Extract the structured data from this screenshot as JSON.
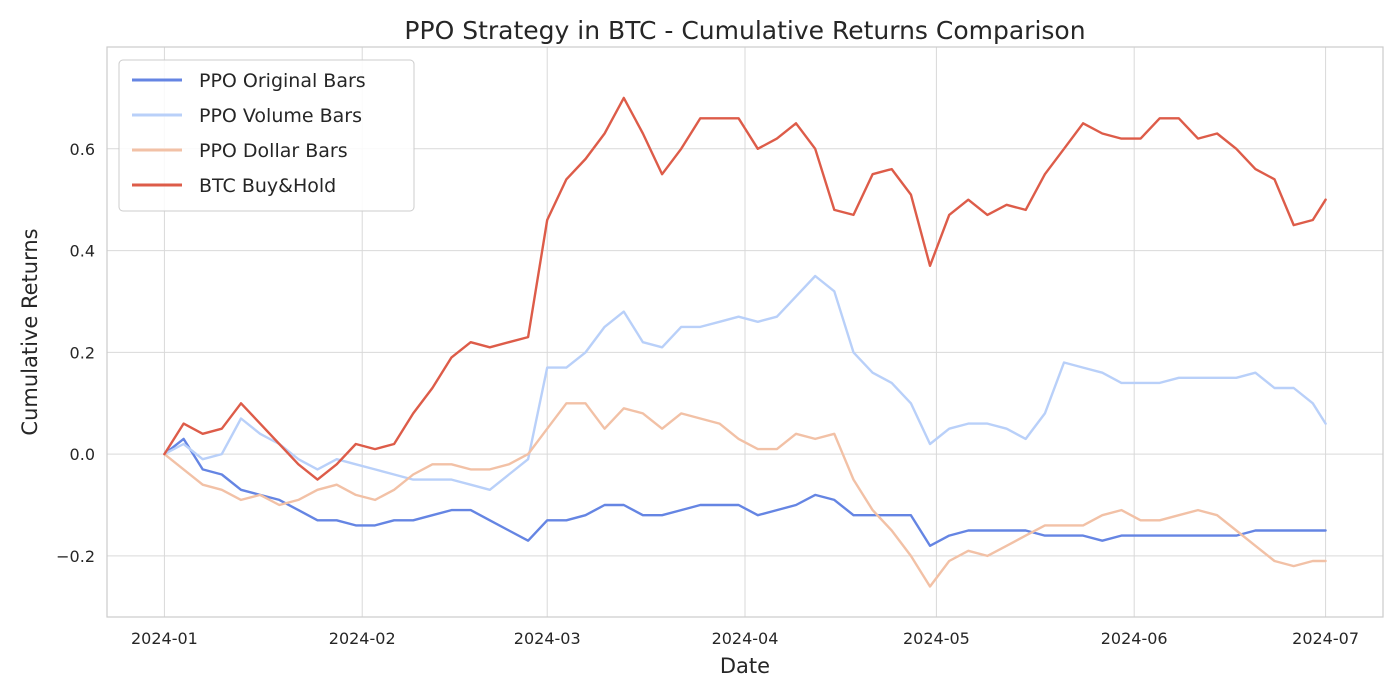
{
  "chart_data": {
    "type": "line",
    "title": "PPO Strategy in BTC - Cumulative Returns Comparison",
    "xlabel": "Date",
    "ylabel": "Cumulative Returns",
    "x_ticks": [
      "2024-01",
      "2024-02",
      "2024-03",
      "2024-04",
      "2024-05",
      "2024-06",
      "2024-07"
    ],
    "y_ticks": [
      -0.2,
      0.0,
      0.2,
      0.4,
      0.6
    ],
    "y_tick_labels": [
      "−0.2",
      "0.0",
      "0.2",
      "0.4",
      "0.6"
    ],
    "xlim": [
      "2023-12-23",
      "2024-07-10"
    ],
    "ylim": [
      -0.32,
      0.8
    ],
    "grid": true,
    "legend_position": "top-left",
    "x": [
      "2024-01-01",
      "2024-01-04",
      "2024-01-07",
      "2024-01-10",
      "2024-01-13",
      "2024-01-16",
      "2024-01-19",
      "2024-01-22",
      "2024-01-25",
      "2024-01-28",
      "2024-01-31",
      "2024-02-03",
      "2024-02-06",
      "2024-02-09",
      "2024-02-12",
      "2024-02-15",
      "2024-02-18",
      "2024-02-21",
      "2024-02-24",
      "2024-02-27",
      "2024-03-01",
      "2024-03-04",
      "2024-03-07",
      "2024-03-10",
      "2024-03-13",
      "2024-03-16",
      "2024-03-19",
      "2024-03-22",
      "2024-03-25",
      "2024-03-28",
      "2024-03-31",
      "2024-04-03",
      "2024-04-06",
      "2024-04-09",
      "2024-04-12",
      "2024-04-15",
      "2024-04-18",
      "2024-04-21",
      "2024-04-24",
      "2024-04-27",
      "2024-04-30",
      "2024-05-03",
      "2024-05-06",
      "2024-05-09",
      "2024-05-12",
      "2024-05-15",
      "2024-05-18",
      "2024-05-21",
      "2024-05-24",
      "2024-05-27",
      "2024-05-30",
      "2024-06-02",
      "2024-06-05",
      "2024-06-08",
      "2024-06-11",
      "2024-06-14",
      "2024-06-17",
      "2024-06-20",
      "2024-06-23",
      "2024-06-26",
      "2024-06-29",
      "2024-07-01"
    ],
    "series": [
      {
        "name": "PPO Original Bars",
        "color": "#6585e3",
        "values": [
          0.0,
          0.03,
          -0.03,
          -0.04,
          -0.07,
          -0.08,
          -0.09,
          -0.11,
          -0.13,
          -0.13,
          -0.14,
          -0.14,
          -0.13,
          -0.13,
          -0.12,
          -0.11,
          -0.11,
          -0.13,
          -0.15,
          -0.17,
          -0.13,
          -0.13,
          -0.12,
          -0.1,
          -0.1,
          -0.12,
          -0.12,
          -0.11,
          -0.1,
          -0.1,
          -0.1,
          -0.12,
          -0.11,
          -0.1,
          -0.08,
          -0.09,
          -0.12,
          -0.12,
          -0.12,
          -0.12,
          -0.18,
          -0.16,
          -0.15,
          -0.15,
          -0.15,
          -0.15,
          -0.16,
          -0.16,
          -0.16,
          -0.17,
          -0.16,
          -0.16,
          -0.16,
          -0.16,
          -0.16,
          -0.16,
          -0.16,
          -0.15,
          -0.15,
          -0.15,
          -0.15,
          -0.15
        ]
      },
      {
        "name": "PPO Volume Bars",
        "color": "#b9d0f9",
        "values": [
          0.0,
          0.02,
          -0.01,
          -0.0,
          0.07,
          0.04,
          0.02,
          -0.01,
          -0.03,
          -0.01,
          -0.02,
          -0.03,
          -0.04,
          -0.05,
          -0.05,
          -0.05,
          -0.06,
          -0.07,
          -0.04,
          -0.01,
          0.17,
          0.17,
          0.2,
          0.25,
          0.28,
          0.22,
          0.21,
          0.25,
          0.25,
          0.26,
          0.27,
          0.26,
          0.27,
          0.31,
          0.35,
          0.32,
          0.2,
          0.16,
          0.14,
          0.1,
          0.02,
          0.05,
          0.06,
          0.06,
          0.05,
          0.03,
          0.08,
          0.18,
          0.17,
          0.16,
          0.14,
          0.14,
          0.14,
          0.15,
          0.15,
          0.15,
          0.15,
          0.16,
          0.13,
          0.13,
          0.1,
          0.06
        ]
      },
      {
        "name": "PPO Dollar Bars",
        "color": "#f2c1a6",
        "values": [
          0.0,
          -0.03,
          -0.06,
          -0.07,
          -0.09,
          -0.08,
          -0.1,
          -0.09,
          -0.07,
          -0.06,
          -0.08,
          -0.09,
          -0.07,
          -0.04,
          -0.02,
          -0.02,
          -0.03,
          -0.03,
          -0.02,
          0.0,
          0.05,
          0.1,
          0.1,
          0.05,
          0.09,
          0.08,
          0.05,
          0.08,
          0.07,
          0.06,
          0.03,
          0.01,
          0.01,
          0.04,
          0.03,
          0.04,
          -0.05,
          -0.11,
          -0.15,
          -0.2,
          -0.26,
          -0.21,
          -0.19,
          -0.2,
          -0.18,
          -0.16,
          -0.14,
          -0.14,
          -0.14,
          -0.12,
          -0.11,
          -0.13,
          -0.13,
          -0.12,
          -0.11,
          -0.12,
          -0.15,
          -0.18,
          -0.21,
          -0.22,
          -0.21,
          -0.21
        ]
      },
      {
        "name": "BTC Buy&Hold",
        "color": "#dd5c49",
        "values": [
          0.0,
          0.06,
          0.04,
          0.05,
          0.1,
          0.06,
          0.02,
          -0.02,
          -0.05,
          -0.02,
          0.02,
          0.01,
          0.02,
          0.08,
          0.13,
          0.19,
          0.22,
          0.21,
          0.22,
          0.23,
          0.46,
          0.54,
          0.58,
          0.63,
          0.7,
          0.63,
          0.55,
          0.6,
          0.66,
          0.66,
          0.66,
          0.6,
          0.62,
          0.65,
          0.6,
          0.48,
          0.47,
          0.55,
          0.56,
          0.51,
          0.37,
          0.47,
          0.5,
          0.47,
          0.49,
          0.48,
          0.55,
          0.6,
          0.65,
          0.63,
          0.62,
          0.62,
          0.66,
          0.66,
          0.62,
          0.63,
          0.6,
          0.56,
          0.54,
          0.45,
          0.46,
          0.5
        ]
      }
    ]
  }
}
